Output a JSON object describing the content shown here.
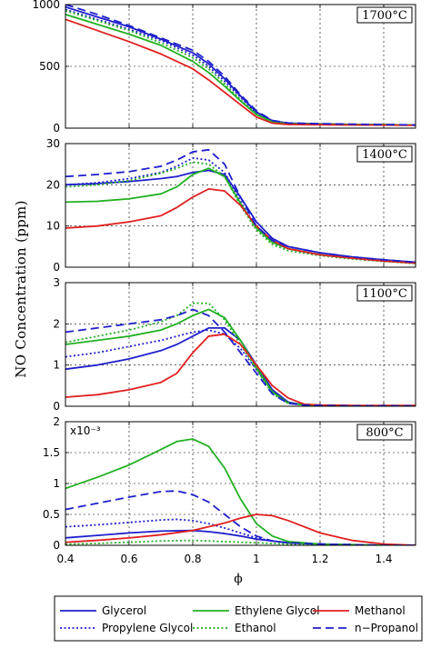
{
  "chart_data": {
    "type": "line",
    "ylabel": "NO Concentration (ppm)",
    "xlabel": "ϕ",
    "xlim": [
      0.4,
      1.5
    ],
    "x_ticks": [
      "0.4",
      "0.6",
      "0.8",
      "1",
      "1.2",
      "1.4"
    ],
    "grid": true,
    "legend_position": "bottom",
    "series_styles": [
      {
        "name": "Glycerol",
        "color": "#1f1fcc",
        "dash": "solid"
      },
      {
        "name": "Propylene Glycol",
        "color": "#1f1fcc",
        "dash": "dotted"
      },
      {
        "name": "Ethylene Glycol",
        "color": "#22b022",
        "dash": "solid"
      },
      {
        "name": "Ethanol",
        "color": "#22b022",
        "dash": "dotted"
      },
      {
        "name": "Methanol",
        "color": "#e02020",
        "dash": "solid"
      },
      {
        "name": "n−Propanol",
        "color": "#1f1fcc",
        "dash": "dashed"
      }
    ],
    "panels": [
      {
        "title": "1700°C",
        "ylim": [
          0,
          1000
        ],
        "y_ticks": [
          0,
          500,
          1000
        ],
        "y_tick_labels": [
          "0",
          "500",
          "1000"
        ],
        "scale_note": "",
        "series": [
          {
            "name": "Glycerol",
            "x": [
              0.4,
              0.5,
              0.6,
              0.7,
              0.8,
              0.85,
              0.9,
              0.95,
              1.0,
              1.05,
              1.1,
              1.2,
              1.3,
              1.4,
              1.5
            ],
            "y": [
              980,
              900,
              820,
              720,
              610,
              520,
              400,
              260,
              130,
              60,
              40,
              35,
              30,
              28,
              25
            ]
          },
          {
            "name": "Propylene Glycol",
            "x": [
              0.4,
              0.5,
              0.6,
              0.7,
              0.8,
              0.85,
              0.9,
              0.95,
              1.0,
              1.05,
              1.1,
              1.2,
              1.3,
              1.4,
              1.5
            ],
            "y": [
              960,
              880,
              800,
              710,
              590,
              500,
              380,
              250,
              120,
              55,
              38,
              33,
              30,
              28,
              25
            ]
          },
          {
            "name": "Ethylene Glycol",
            "x": [
              0.4,
              0.5,
              0.6,
              0.7,
              0.8,
              0.85,
              0.9,
              0.95,
              1.0,
              1.05,
              1.1,
              1.2,
              1.3,
              1.4,
              1.5
            ],
            "y": [
              920,
              840,
              760,
              670,
              540,
              450,
              340,
              220,
              110,
              50,
              35,
              32,
              30,
              28,
              25
            ]
          },
          {
            "name": "Ethanol",
            "x": [
              0.4,
              0.5,
              0.6,
              0.7,
              0.8,
              0.85,
              0.9,
              0.95,
              1.0,
              1.05,
              1.1,
              1.2,
              1.3,
              1.4,
              1.5
            ],
            "y": [
              950,
              870,
              790,
              690,
              570,
              480,
              360,
              230,
              115,
              52,
              36,
              32,
              30,
              28,
              25
            ]
          },
          {
            "name": "Methanol",
            "x": [
              0.4,
              0.5,
              0.6,
              0.7,
              0.8,
              0.85,
              0.9,
              0.95,
              1.0,
              1.05,
              1.1,
              1.2,
              1.3,
              1.4,
              1.5
            ],
            "y": [
              880,
              790,
              700,
              600,
              480,
              390,
              290,
              190,
              90,
              40,
              30,
              28,
              26,
              25,
              23
            ]
          },
          {
            "name": "n−Propanol",
            "x": [
              0.4,
              0.5,
              0.6,
              0.7,
              0.8,
              0.85,
              0.9,
              0.95,
              1.0,
              1.05,
              1.1,
              1.2,
              1.3,
              1.4,
              1.5
            ],
            "y": [
              1000,
              920,
              830,
              730,
              630,
              540,
              420,
              270,
              140,
              62,
              42,
              36,
              32,
              29,
              26
            ]
          }
        ]
      },
      {
        "title": "1400°C",
        "ylim": [
          0,
          30
        ],
        "y_ticks": [
          0,
          10,
          20,
          30
        ],
        "y_tick_labels": [
          "0",
          "10",
          "20",
          "30"
        ],
        "scale_note": "",
        "series": [
          {
            "name": "Glycerol",
            "x": [
              0.4,
              0.5,
              0.6,
              0.7,
              0.75,
              0.8,
              0.85,
              0.9,
              0.95,
              1.0,
              1.05,
              1.1,
              1.2,
              1.3,
              1.4,
              1.5
            ],
            "y": [
              20,
              20.3,
              20.8,
              21.5,
              22,
              23,
              23.5,
              22.5,
              17,
              11,
              7,
              5,
              3.5,
              2.5,
              1.8,
              1.2
            ]
          },
          {
            "name": "Propylene Glycol",
            "x": [
              0.4,
              0.5,
              0.6,
              0.7,
              0.75,
              0.8,
              0.85,
              0.9,
              0.95,
              1.0,
              1.05,
              1.1,
              1.2,
              1.3,
              1.4,
              1.5
            ],
            "y": [
              20,
              20.5,
              21.5,
              23,
              24.5,
              26.5,
              26,
              23,
              16,
              9.5,
              6,
              4.5,
              3,
              2.2,
              1.6,
              1.1
            ]
          },
          {
            "name": "Ethylene Glycol",
            "x": [
              0.4,
              0.5,
              0.6,
              0.7,
              0.75,
              0.8,
              0.85,
              0.9,
              0.95,
              1.0,
              1.05,
              1.1,
              1.2,
              1.3,
              1.4,
              1.5
            ],
            "y": [
              15.8,
              16,
              16.6,
              17.8,
              19.5,
              22.5,
              24,
              22,
              15.5,
              9.5,
              6,
              4.5,
              3,
              2.2,
              1.5,
              1
            ]
          },
          {
            "name": "Ethanol",
            "x": [
              0.4,
              0.5,
              0.6,
              0.7,
              0.75,
              0.8,
              0.85,
              0.9,
              0.95,
              1.0,
              1.05,
              1.1,
              1.2,
              1.3,
              1.4,
              1.5
            ],
            "y": [
              19.5,
              20,
              21,
              22.8,
              24,
              25.5,
              25,
              22,
              15,
              9,
              5.5,
              4,
              2.8,
              2,
              1.4,
              0.9
            ]
          },
          {
            "name": "Methanol",
            "x": [
              0.4,
              0.5,
              0.6,
              0.7,
              0.75,
              0.8,
              0.85,
              0.9,
              0.95,
              1.0,
              1.05,
              1.1,
              1.2,
              1.3,
              1.4,
              1.5
            ],
            "y": [
              9.5,
              10,
              11,
              12.5,
              14.5,
              17,
              19,
              18.5,
              15,
              10,
              6.5,
              4.5,
              3,
              2.2,
              1.5,
              1
            ]
          },
          {
            "name": "n−Propanol",
            "x": [
              0.4,
              0.5,
              0.6,
              0.7,
              0.75,
              0.8,
              0.85,
              0.9,
              0.95,
              1.0,
              1.05,
              1.1,
              1.2,
              1.3,
              1.4,
              1.5
            ],
            "y": [
              22,
              22.5,
              23.2,
              24.5,
              26,
              28,
              28.5,
              25,
              17,
              10,
              6.5,
              5,
              3.5,
              2.5,
              1.8,
              1.2
            ]
          }
        ]
      },
      {
        "title": "1100°C",
        "ylim": [
          0,
          3
        ],
        "y_ticks": [
          0,
          1,
          2,
          3
        ],
        "y_tick_labels": [
          "0",
          "1",
          "2",
          "3"
        ],
        "scale_note": "",
        "series": [
          {
            "name": "Glycerol",
            "x": [
              0.4,
              0.5,
              0.6,
              0.7,
              0.75,
              0.8,
              0.85,
              0.9,
              0.95,
              1.0,
              1.05,
              1.1,
              1.15,
              1.2,
              1.3,
              1.4,
              1.5
            ],
            "y": [
              0.9,
              1.0,
              1.15,
              1.35,
              1.5,
              1.7,
              1.9,
              1.9,
              1.6,
              1.0,
              0.4,
              0.1,
              0.03,
              0.02,
              0.01,
              0.01,
              0.01
            ]
          },
          {
            "name": "Propylene Glycol",
            "x": [
              0.4,
              0.5,
              0.6,
              0.7,
              0.75,
              0.8,
              0.85,
              0.9,
              0.95,
              1.0,
              1.05,
              1.1,
              1.15,
              1.2,
              1.3,
              1.4,
              1.5
            ],
            "y": [
              1.2,
              1.3,
              1.45,
              1.6,
              1.7,
              1.8,
              1.85,
              1.75,
              1.4,
              0.9,
              0.35,
              0.08,
              0.03,
              0.02,
              0.01,
              0.01,
              0.01
            ]
          },
          {
            "name": "Ethylene Glycol",
            "x": [
              0.4,
              0.5,
              0.6,
              0.7,
              0.75,
              0.8,
              0.85,
              0.9,
              0.95,
              1.0,
              1.05,
              1.1,
              1.15,
              1.2,
              1.3,
              1.4,
              1.5
            ],
            "y": [
              1.5,
              1.6,
              1.7,
              1.85,
              2.0,
              2.2,
              2.35,
              2.15,
              1.6,
              0.95,
              0.35,
              0.08,
              0.03,
              0.02,
              0.01,
              0.01,
              0.01
            ]
          },
          {
            "name": "Ethanol",
            "x": [
              0.4,
              0.5,
              0.6,
              0.7,
              0.75,
              0.8,
              0.85,
              0.9,
              0.95,
              1.0,
              1.05,
              1.1,
              1.15,
              1.2,
              1.3,
              1.4,
              1.5
            ],
            "y": [
              1.55,
              1.7,
              1.85,
              2.05,
              2.2,
              2.5,
              2.5,
              2.1,
              1.5,
              0.9,
              0.3,
              0.07,
              0.03,
              0.02,
              0.01,
              0.01,
              0.01
            ]
          },
          {
            "name": "Methanol",
            "x": [
              0.4,
              0.5,
              0.6,
              0.7,
              0.75,
              0.8,
              0.85,
              0.9,
              0.95,
              1.0,
              1.05,
              1.1,
              1.15,
              1.2,
              1.3,
              1.4,
              1.5
            ],
            "y": [
              0.22,
              0.28,
              0.4,
              0.58,
              0.8,
              1.3,
              1.7,
              1.75,
              1.5,
              1.0,
              0.5,
              0.2,
              0.05,
              0.03,
              0.02,
              0.02,
              0.02
            ]
          },
          {
            "name": "n−Propanol",
            "x": [
              0.4,
              0.5,
              0.6,
              0.7,
              0.75,
              0.8,
              0.85,
              0.9,
              0.95,
              1.0,
              1.05,
              1.1,
              1.15,
              1.2,
              1.3,
              1.4,
              1.5
            ],
            "y": [
              1.8,
              1.9,
              2.0,
              2.1,
              2.2,
              2.35,
              2.2,
              1.8,
              1.3,
              0.8,
              0.3,
              0.07,
              0.03,
              0.02,
              0.01,
              0.01,
              0.01
            ]
          }
        ]
      },
      {
        "title": "800°C",
        "ylim": [
          0,
          2
        ],
        "y_ticks": [
          0,
          0.5,
          1,
          1.5,
          2
        ],
        "y_tick_labels": [
          "0",
          "0.5",
          "1",
          "1.5",
          "2"
        ],
        "scale_note": "x10⁻³",
        "series": [
          {
            "name": "Glycerol",
            "x": [
              0.4,
              0.5,
              0.6,
              0.7,
              0.8,
              0.85,
              0.9,
              0.95,
              1.0,
              1.1,
              1.2,
              1.3,
              1.4,
              1.5
            ],
            "y": [
              0.12,
              0.16,
              0.2,
              0.23,
              0.24,
              0.22,
              0.19,
              0.15,
              0.1,
              0.04,
              0.02,
              0.01,
              0.0,
              0.0
            ]
          },
          {
            "name": "Propylene Glycol",
            "x": [
              0.4,
              0.5,
              0.6,
              0.7,
              0.75,
              0.8,
              0.85,
              0.9,
              0.95,
              1.0,
              1.05,
              1.1,
              1.2,
              1.3,
              1.4,
              1.5
            ],
            "y": [
              0.3,
              0.33,
              0.37,
              0.41,
              0.42,
              0.4,
              0.35,
              0.28,
              0.2,
              0.12,
              0.07,
              0.04,
              0.02,
              0.01,
              0.0,
              0.0
            ]
          },
          {
            "name": "Ethylene Glycol",
            "x": [
              0.4,
              0.5,
              0.6,
              0.7,
              0.75,
              0.8,
              0.85,
              0.9,
              0.95,
              1.0,
              1.05,
              1.1,
              1.2,
              1.3,
              1.4,
              1.5
            ],
            "y": [
              0.92,
              1.1,
              1.3,
              1.55,
              1.68,
              1.72,
              1.6,
              1.25,
              0.75,
              0.35,
              0.15,
              0.06,
              0.02,
              0.01,
              0.0,
              0.0
            ]
          },
          {
            "name": "Ethanol",
            "x": [
              0.4,
              0.5,
              0.6,
              0.7,
              0.8,
              0.9,
              1.0,
              1.1,
              1.2,
              1.3,
              1.4,
              1.5
            ],
            "y": [
              0.02,
              0.03,
              0.05,
              0.07,
              0.08,
              0.06,
              0.04,
              0.02,
              0.01,
              0.0,
              0.0,
              0.0
            ]
          },
          {
            "name": "Methanol",
            "x": [
              0.4,
              0.5,
              0.6,
              0.7,
              0.8,
              0.9,
              0.95,
              1.0,
              1.05,
              1.1,
              1.2,
              1.3,
              1.4,
              1.5
            ],
            "y": [
              0.05,
              0.08,
              0.12,
              0.17,
              0.24,
              0.36,
              0.44,
              0.5,
              0.48,
              0.4,
              0.2,
              0.08,
              0.02,
              0.0
            ]
          },
          {
            "name": "n−Propanol",
            "x": [
              0.4,
              0.5,
              0.6,
              0.7,
              0.75,
              0.8,
              0.85,
              0.9,
              0.95,
              1.0,
              1.05,
              1.1,
              1.2,
              1.3,
              1.4,
              1.5
            ],
            "y": [
              0.58,
              0.68,
              0.78,
              0.87,
              0.88,
              0.82,
              0.7,
              0.5,
              0.3,
              0.15,
              0.07,
              0.04,
              0.02,
              0.01,
              0.0,
              0.0
            ]
          }
        ]
      }
    ]
  }
}
